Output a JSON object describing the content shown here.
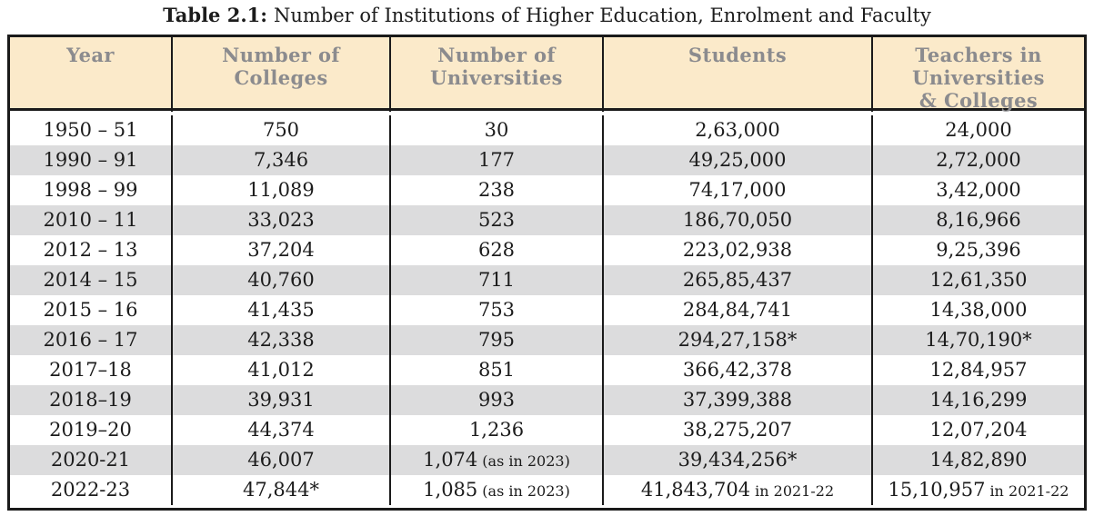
{
  "title": {
    "label": "Table 2.1:",
    "text": "Number of Institutions of Higher Education, Enrolment and Faculty"
  },
  "table": {
    "columns": [
      "Year",
      "Number of\nColleges",
      "Number of\nUniversities",
      "Students",
      "Teachers in\nUniversities\n& Colleges"
    ],
    "rows": [
      [
        "1950 – 51",
        "750",
        "30",
        "2,63,000",
        "24,000"
      ],
      [
        "1990 – 91",
        "7,346",
        "177",
        "49,25,000",
        "2,72,000"
      ],
      [
        "1998 – 99",
        "11,089",
        "238",
        "74,17,000",
        "3,42,000"
      ],
      [
        "2010 – 11",
        "33,023",
        "523",
        "186,70,050",
        "8,16,966"
      ],
      [
        "2012 – 13",
        "37,204",
        "628",
        "223,02,938",
        "9,25,396"
      ],
      [
        "2014 – 15",
        "40,760",
        "711",
        "265,85,437",
        "12,61,350"
      ],
      [
        "2015 – 16",
        "41,435",
        "753",
        "284,84,741",
        "14,38,000"
      ],
      [
        "2016 – 17",
        "42,338",
        "795",
        "294,27,158*",
        "14,70,190*"
      ],
      [
        "2017–18",
        "41,012",
        "851",
        "366,42,378",
        "12,84,957"
      ],
      [
        "2018–19",
        "39,931",
        "993",
        "37,399,388",
        "14,16,299"
      ],
      [
        "2019–20",
        "44,374",
        "1,236",
        "38,275,207",
        "12,07,204"
      ],
      [
        "2020-21",
        "46,007",
        {
          "main": "1,074",
          "suffix": "(as in 2023)"
        },
        "39,434,256*",
        "14,82,890"
      ],
      [
        "2022-23",
        "47,844*",
        {
          "main": "1,085",
          "suffix": "(as in 2023)"
        },
        {
          "main": "41,843,704",
          "suffix": "in 2021-22"
        },
        {
          "main": "15,10,957",
          "suffix": "in 2021-22"
        }
      ]
    ],
    "colors": {
      "header_bg": "#fbeaca",
      "stripe": "#dcdcdd",
      "border": "#1a1a1a",
      "header_text": "#8b8b8e",
      "body_text": "#1c1c1c"
    }
  }
}
